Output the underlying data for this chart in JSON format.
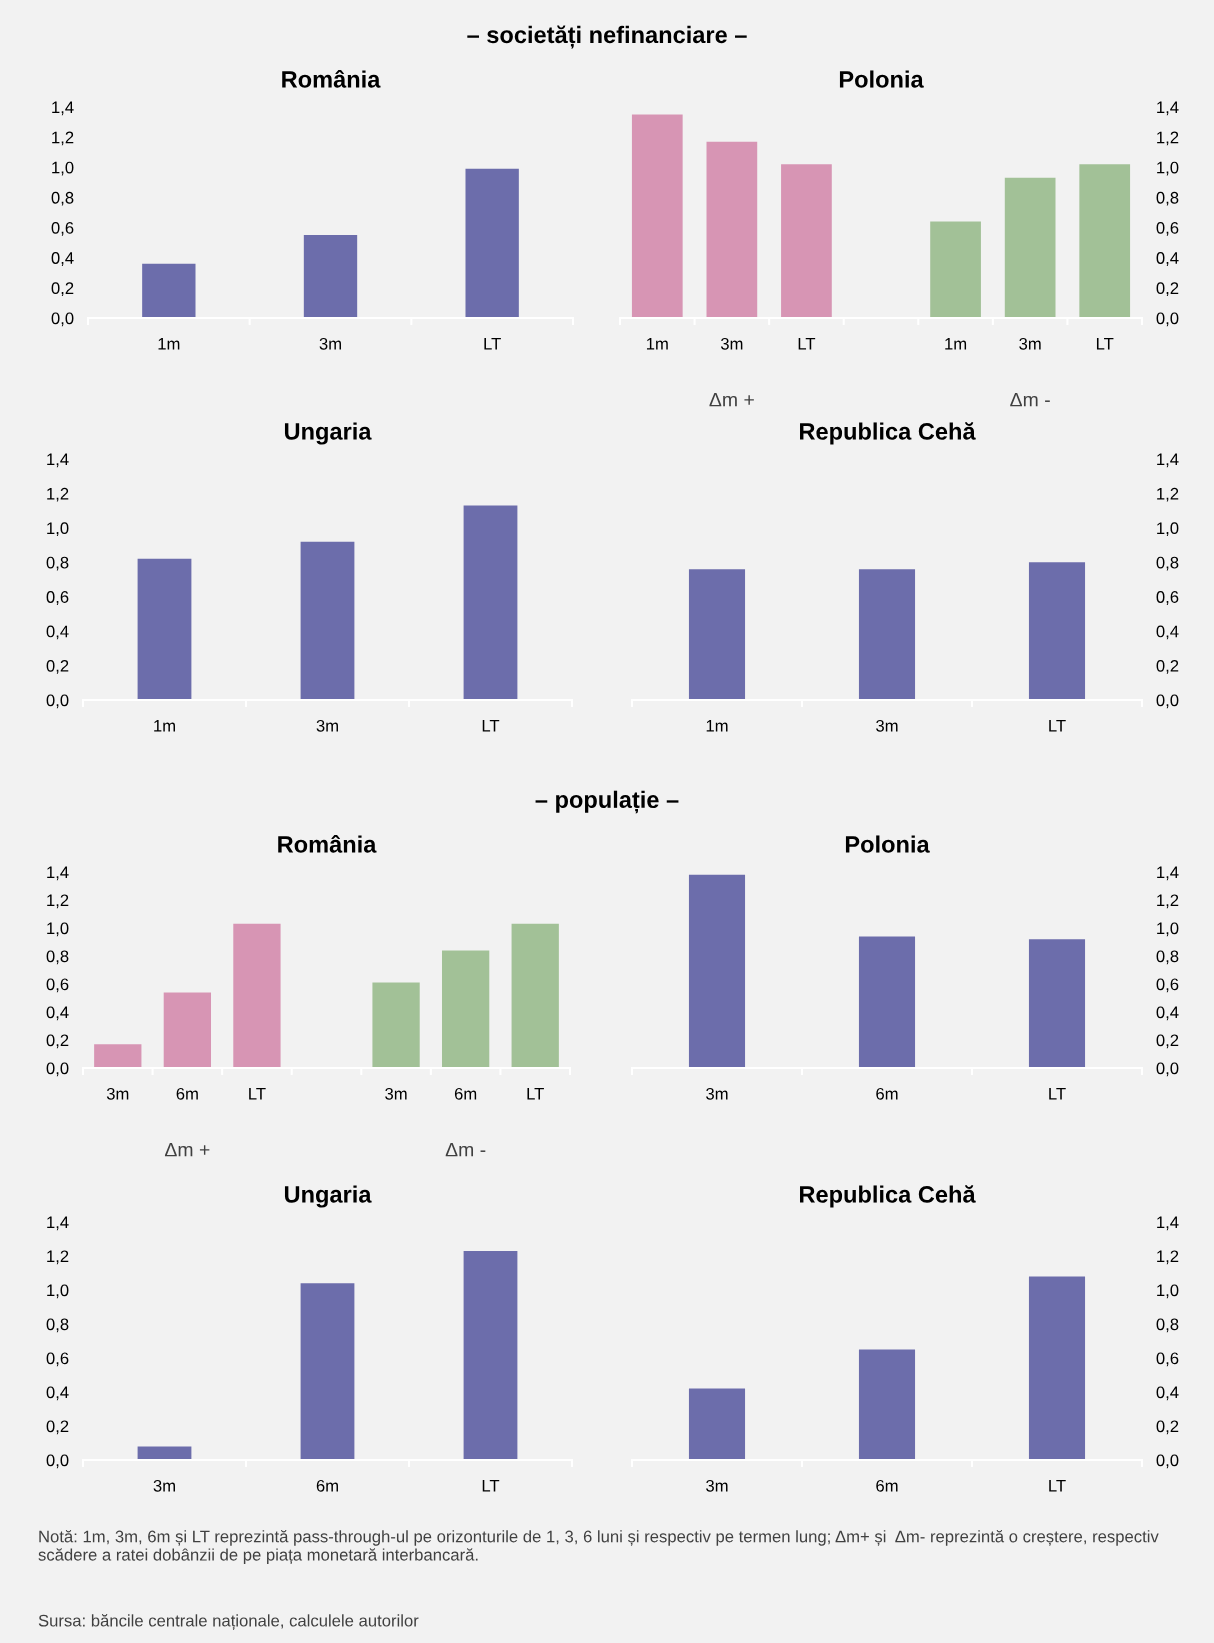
{
  "chart_data": [
    {
      "type": "bar",
      "title": "România",
      "subtitle": "– societăți nefinanciare –",
      "categories": [
        "1m",
        "3m",
        "LT"
      ],
      "values": [
        0.36,
        0.55,
        0.99
      ],
      "colors": [
        "#6c6dab",
        "#6c6dab",
        "#6c6dab"
      ],
      "ylim": [
        0,
        1.4
      ],
      "yticks": [
        {
          "value": 0,
          "label": "0,0"
        },
        {
          "value": 0.2,
          "label": "0,2"
        },
        {
          "value": 0.4,
          "label": "0,4"
        },
        {
          "value": 0.6,
          "label": "0,6"
        },
        {
          "value": 0.8,
          "label": "0,8"
        },
        {
          "value": 1.0,
          "label": "1,0"
        },
        {
          "value": 1.2,
          "label": "1,2"
        },
        {
          "value": 1.4,
          "label": "1,4"
        }
      ],
      "grid": false,
      "legend": false
    },
    {
      "type": "bar",
      "title": "Polonia",
      "categories": [
        "1m",
        "3m",
        "LT",
        null,
        "1m",
        "3m",
        "LT"
      ],
      "values": [
        1.35,
        1.17,
        1.02,
        null,
        0.64,
        0.93,
        1.02
      ],
      "colors": [
        "#d795b4",
        "#d795b4",
        "#d795b4",
        null,
        "#a2c197",
        "#a2c197",
        "#a2c197"
      ],
      "annotations": [
        "Δm +",
        "Δm -"
      ],
      "ylim": [
        0,
        1.4
      ],
      "yticks": [
        {
          "value": 0,
          "label": "0,0"
        },
        {
          "value": 0.2,
          "label": "0,2"
        },
        {
          "value": 0.4,
          "label": "0,4"
        },
        {
          "value": 0.6,
          "label": "0,6"
        },
        {
          "value": 0.8,
          "label": "0,8"
        },
        {
          "value": 1.0,
          "label": "1,0"
        },
        {
          "value": 1.2,
          "label": "1,2"
        },
        {
          "value": 1.4,
          "label": "1,4"
        }
      ],
      "grid": false,
      "legend": false
    },
    {
      "type": "bar",
      "title": "Ungaria",
      "categories": [
        "1m",
        "3m",
        "LT"
      ],
      "values": [
        0.82,
        0.92,
        1.13
      ],
      "colors": [
        "#6c6dab",
        "#6c6dab",
        "#6c6dab"
      ],
      "ylim": [
        0,
        1.4
      ],
      "yticks": [
        {
          "value": 0,
          "label": "0,0"
        },
        {
          "value": 0.2,
          "label": "0,2"
        },
        {
          "value": 0.4,
          "label": "0,4"
        },
        {
          "value": 0.6,
          "label": "0,6"
        },
        {
          "value": 0.8,
          "label": "0,8"
        },
        {
          "value": 1.0,
          "label": "1,0"
        },
        {
          "value": 1.2,
          "label": "1,2"
        },
        {
          "value": 1.4,
          "label": "1,4"
        }
      ],
      "grid": false,
      "legend": false
    },
    {
      "type": "bar",
      "title": "Republica Cehă",
      "categories": [
        "1m",
        "3m",
        "LT"
      ],
      "values": [
        0.76,
        0.76,
        0.8
      ],
      "colors": [
        "#6c6dab",
        "#6c6dab",
        "#6c6dab"
      ],
      "ylim": [
        0,
        1.4
      ],
      "yticks": [
        {
          "value": 0,
          "label": "0,0"
        },
        {
          "value": 0.2,
          "label": "0,2"
        },
        {
          "value": 0.4,
          "label": "0,4"
        },
        {
          "value": 0.6,
          "label": "0,6"
        },
        {
          "value": 0.8,
          "label": "0,8"
        },
        {
          "value": 1.0,
          "label": "1,0"
        },
        {
          "value": 1.2,
          "label": "1,2"
        },
        {
          "value": 1.4,
          "label": "1,4"
        }
      ],
      "grid": false,
      "legend": false
    },
    {
      "type": "bar",
      "title": "România",
      "subtitle": "– populație –",
      "categories": [
        "3m",
        "6m",
        "LT",
        null,
        "3m",
        "6m",
        "LT"
      ],
      "values": [
        0.17,
        0.54,
        1.03,
        null,
        0.61,
        0.84,
        1.03
      ],
      "colors": [
        "#d795b4",
        "#d795b4",
        "#d795b4",
        null,
        "#a2c197",
        "#a2c197",
        "#a2c197"
      ],
      "annotations": [
        "Δm +",
        "Δm -"
      ],
      "ylim": [
        0,
        1.4
      ],
      "yticks": [
        {
          "value": 0,
          "label": "0,0"
        },
        {
          "value": 0.2,
          "label": "0,2"
        },
        {
          "value": 0.4,
          "label": "0,4"
        },
        {
          "value": 0.6,
          "label": "0,6"
        },
        {
          "value": 0.8,
          "label": "0,8"
        },
        {
          "value": 1.0,
          "label": "1,0"
        },
        {
          "value": 1.2,
          "label": "1,2"
        },
        {
          "value": 1.4,
          "label": "1,4"
        }
      ],
      "grid": false,
      "legend": false
    },
    {
      "type": "bar",
      "title": "Polonia",
      "categories": [
        "3m",
        "6m",
        "LT"
      ],
      "values": [
        1.38,
        0.94,
        0.92
      ],
      "colors": [
        "#6c6dab",
        "#6c6dab",
        "#6c6dab"
      ],
      "ylim": [
        0,
        1.4
      ],
      "yticks": [
        {
          "value": 0,
          "label": "0,0"
        },
        {
          "value": 0.2,
          "label": "0,2"
        },
        {
          "value": 0.4,
          "label": "0,4"
        },
        {
          "value": 0.6,
          "label": "0,6"
        },
        {
          "value": 0.8,
          "label": "0,8"
        },
        {
          "value": 1.0,
          "label": "1,0"
        },
        {
          "value": 1.2,
          "label": "1,2"
        },
        {
          "value": 1.4,
          "label": "1,4"
        }
      ],
      "grid": false,
      "legend": false
    },
    {
      "type": "bar",
      "title": "Ungaria",
      "categories": [
        "3m",
        "6m",
        "LT"
      ],
      "values": [
        0.08,
        1.04,
        1.23
      ],
      "colors": [
        "#6c6dab",
        "#6c6dab",
        "#6c6dab"
      ],
      "ylim": [
        0,
        1.4
      ],
      "yticks": [
        {
          "value": 0,
          "label": "0,0"
        },
        {
          "value": 0.2,
          "label": "0,2"
        },
        {
          "value": 0.4,
          "label": "0,4"
        },
        {
          "value": 0.6,
          "label": "0,6"
        },
        {
          "value": 0.8,
          "label": "0,8"
        },
        {
          "value": 1.0,
          "label": "1,0"
        },
        {
          "value": 1.2,
          "label": "1,2"
        },
        {
          "value": 1.4,
          "label": "1,4"
        }
      ],
      "grid": false,
      "legend": false
    },
    {
      "type": "bar",
      "title": "Republica Cehă",
      "categories": [
        "3m",
        "6m",
        "LT"
      ],
      "values": [
        0.42,
        0.65,
        1.08
      ],
      "colors": [
        "#6c6dab",
        "#6c6dab",
        "#6c6dab"
      ],
      "ylim": [
        0,
        1.4
      ],
      "yticks": [
        {
          "value": 0,
          "label": "0,0"
        },
        {
          "value": 0.2,
          "label": "0,2"
        },
        {
          "value": 0.4,
          "label": "0,4"
        },
        {
          "value": 0.6,
          "label": "0,6"
        },
        {
          "value": 0.8,
          "label": "0,8"
        },
        {
          "value": 1.0,
          "label": "1,0"
        },
        {
          "value": 1.2,
          "label": "1,2"
        },
        {
          "value": 1.4,
          "label": "1,4"
        }
      ],
      "grid": false,
      "legend": false,
      "annotations": [
        "Notă: 1m, 3m, 6m și LT reprezintă pass-through-ul pe orizonturile de 1, 3, 6 luni și respectiv pe termen lung; Δm+ și  Δm- reprezintă o creștere, respectiv scădere a ratei dobânzii de pe piața monetară interbancară.",
        "Sursa: băncile centrale naționale, calculele autorilor"
      ]
    }
  ]
}
